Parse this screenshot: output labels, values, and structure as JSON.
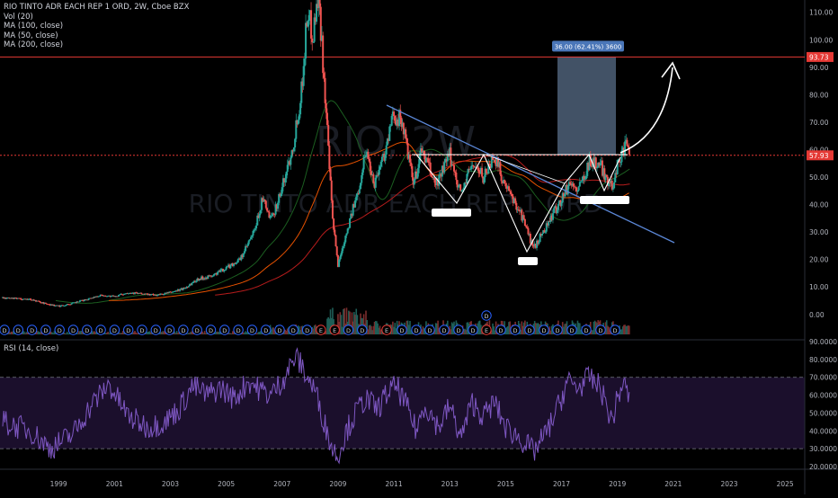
{
  "header": {
    "symbol_line": "RIO TINTO ADR EACH REP 1 ORD, 2W, Cboe BZX",
    "indicators": [
      "Vol (20)",
      "MA (100, close)",
      "MA (50, close)",
      "MA (200, close)"
    ]
  },
  "watermark": {
    "symbol": "RIO, 2W",
    "name": "RIO TINTO ADR EACH REP 1 ORD"
  },
  "rsi": {
    "label": "RSI (14, close)",
    "upper": 70,
    "lower": 30,
    "y_ticks": [
      "90.0000",
      "80.0000",
      "70.0000",
      "60.0000",
      "50.0000",
      "40.0000",
      "30.0000",
      "20.0000"
    ]
  },
  "colors": {
    "up": "#26a69a",
    "down": "#ef5350",
    "hline": "#e53935",
    "rsi": "#7e57c2",
    "rsi_band": "#1b0f2c",
    "trend": "#5b87d6",
    "ma100": "#e65100",
    "ma50": "#1b5e20",
    "ma200": "#b71c1c"
  },
  "annotations": {
    "measure_label": "36.00 (62.41%) 3600",
    "arrow": "projected breakout arrow"
  },
  "chart_data": {
    "type": "candlestick",
    "xlabel": "",
    "ylabel": "",
    "x_ticks": [
      "1999",
      "2001",
      "2003",
      "2005",
      "2007",
      "2009",
      "2011",
      "2013",
      "2015",
      "2017",
      "2019",
      "2021",
      "2023",
      "2025"
    ],
    "y_ticks": [
      "110.00",
      "100.00",
      "90.00",
      "80.00",
      "70.00",
      "60.00",
      "50.00",
      "40.00",
      "30.00",
      "20.00",
      "10.00",
      "0.00"
    ],
    "ylim": [
      -8,
      118
    ],
    "price_labels": [
      {
        "text": "93.73",
        "value": 93.73
      },
      {
        "text": "57.93",
        "value": 57.93
      }
    ],
    "horizontal_lines": [
      93.73,
      57.93
    ],
    "price_path": [
      [
        1997.0,
        6.0
      ],
      [
        1998.0,
        5.5
      ],
      [
        1998.5,
        4.0
      ],
      [
        1999.0,
        3.0
      ],
      [
        1999.5,
        4.0
      ],
      [
        2000.0,
        5.5
      ],
      [
        2000.5,
        7.0
      ],
      [
        2001.0,
        6.5
      ],
      [
        2001.5,
        8.0
      ],
      [
        2002.0,
        7.5
      ],
      [
        2002.5,
        7.0
      ],
      [
        2003.0,
        8.0
      ],
      [
        2003.5,
        9.5
      ],
      [
        2004.0,
        13.0
      ],
      [
        2004.5,
        14.0
      ],
      [
        2005.0,
        17.0
      ],
      [
        2005.5,
        20.0
      ],
      [
        2006.0,
        30.0
      ],
      [
        2006.3,
        42.0
      ],
      [
        2006.6,
        34.0
      ],
      [
        2007.0,
        46.0
      ],
      [
        2007.4,
        62.0
      ],
      [
        2007.7,
        82.0
      ],
      [
        2007.9,
        110.0
      ],
      [
        2008.1,
        102.0
      ],
      [
        2008.3,
        118.0
      ],
      [
        2008.5,
        86.0
      ],
      [
        2008.8,
        35.0
      ],
      [
        2009.0,
        18.0
      ],
      [
        2009.3,
        30.0
      ],
      [
        2009.7,
        44.0
      ],
      [
        2010.0,
        60.0
      ],
      [
        2010.3,
        48.0
      ],
      [
        2010.7,
        60.0
      ],
      [
        2011.0,
        73.0
      ],
      [
        2011.3,
        70.0
      ],
      [
        2011.7,
        47.0
      ],
      [
        2012.0,
        60.0
      ],
      [
        2012.5,
        47.0
      ],
      [
        2013.0,
        58.0
      ],
      [
        2013.4,
        44.0
      ],
      [
        2013.8,
        55.0
      ],
      [
        2014.2,
        50.0
      ],
      [
        2014.6,
        58.0
      ],
      [
        2015.0,
        46.0
      ],
      [
        2015.5,
        38.0
      ],
      [
        2016.0,
        24.0
      ],
      [
        2016.5,
        33.0
      ],
      [
        2017.0,
        42.0
      ],
      [
        2017.3,
        48.0
      ],
      [
        2017.6,
        45.0
      ],
      [
        2018.0,
        56.0
      ],
      [
        2018.4,
        54.0
      ],
      [
        2018.8,
        46.0
      ],
      [
        2019.0,
        55.0
      ],
      [
        2019.3,
        61.0
      ],
      [
        2019.45,
        58.0
      ]
    ],
    "volume_ylim": [
      0,
      30
    ],
    "rsi_path": [
      [
        1997.0,
        45
      ],
      [
        1998.0,
        40
      ],
      [
        1998.7,
        30
      ],
      [
        1999.5,
        38
      ],
      [
        2000.2,
        55
      ],
      [
        2000.8,
        66
      ],
      [
        2001.5,
        48
      ],
      [
        2002.2,
        42
      ],
      [
        2002.8,
        45
      ],
      [
        2003.3,
        52
      ],
      [
        2003.8,
        65
      ],
      [
        2004.3,
        60
      ],
      [
        2004.8,
        64
      ],
      [
        2005.3,
        58
      ],
      [
        2005.8,
        68
      ],
      [
        2006.2,
        63
      ],
      [
        2006.6,
        60
      ],
      [
        2007.0,
        68
      ],
      [
        2007.5,
        82
      ],
      [
        2007.9,
        70
      ],
      [
        2008.2,
        62
      ],
      [
        2008.5,
        45
      ],
      [
        2008.8,
        30
      ],
      [
        2009.0,
        26
      ],
      [
        2009.3,
        40
      ],
      [
        2009.7,
        52
      ],
      [
        2010.0,
        58
      ],
      [
        2010.4,
        52
      ],
      [
        2010.8,
        62
      ],
      [
        2011.1,
        65
      ],
      [
        2011.5,
        52
      ],
      [
        2011.8,
        40
      ],
      [
        2012.1,
        55
      ],
      [
        2012.6,
        42
      ],
      [
        2013.0,
        54
      ],
      [
        2013.4,
        36
      ],
      [
        2013.8,
        56
      ],
      [
        2014.2,
        48
      ],
      [
        2014.6,
        56
      ],
      [
        2015.0,
        42
      ],
      [
        2015.5,
        36
      ],
      [
        2016.0,
        28
      ],
      [
        2016.5,
        40
      ],
      [
        2017.0,
        58
      ],
      [
        2017.2,
        68
      ],
      [
        2017.6,
        64
      ],
      [
        2018.0,
        70
      ],
      [
        2018.4,
        64
      ],
      [
        2018.8,
        45
      ],
      [
        2019.0,
        58
      ],
      [
        2019.2,
        67
      ],
      [
        2019.45,
        58
      ]
    ],
    "rsi_ylim": [
      20,
      90
    ],
    "dividend_markers": [
      "D",
      "E"
    ]
  }
}
